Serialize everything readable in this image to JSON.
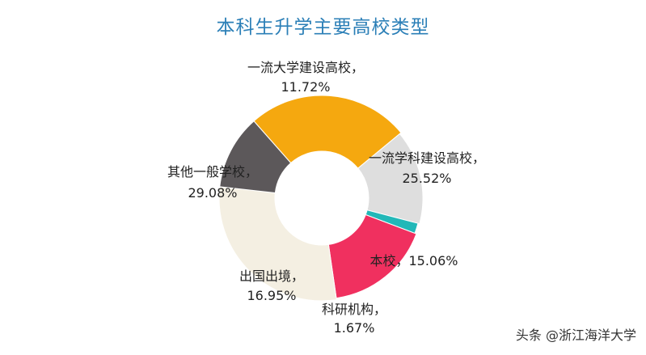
{
  "chart_data": {
    "type": "pie",
    "title": "本科生升学主要高校类型",
    "donut": true,
    "slices": [
      {
        "label": "一流学科建设高校，",
        "percent_text": "25.52%",
        "value": 25.52,
        "color": "#f5a80f"
      },
      {
        "label": "本校，",
        "percent_text": "15.06%",
        "value": 15.06,
        "color": "#dedede"
      },
      {
        "label": "科研机构，",
        "percent_text": "1.67%",
        "value": 1.67,
        "color": "#22b8b8"
      },
      {
        "label": "出国出境，",
        "percent_text": "16.95%",
        "value": 16.95,
        "color": "#f0305f"
      },
      {
        "label": "其他一般学校，",
        "percent_text": "29.08%",
        "value": 29.08,
        "color": "#f4efe2"
      },
      {
        "label": "一流大学建设高校，",
        "percent_text": "11.72%",
        "value": 11.72,
        "color": "#5c585a"
      }
    ]
  },
  "watermark": "头条 @浙江海洋大学"
}
